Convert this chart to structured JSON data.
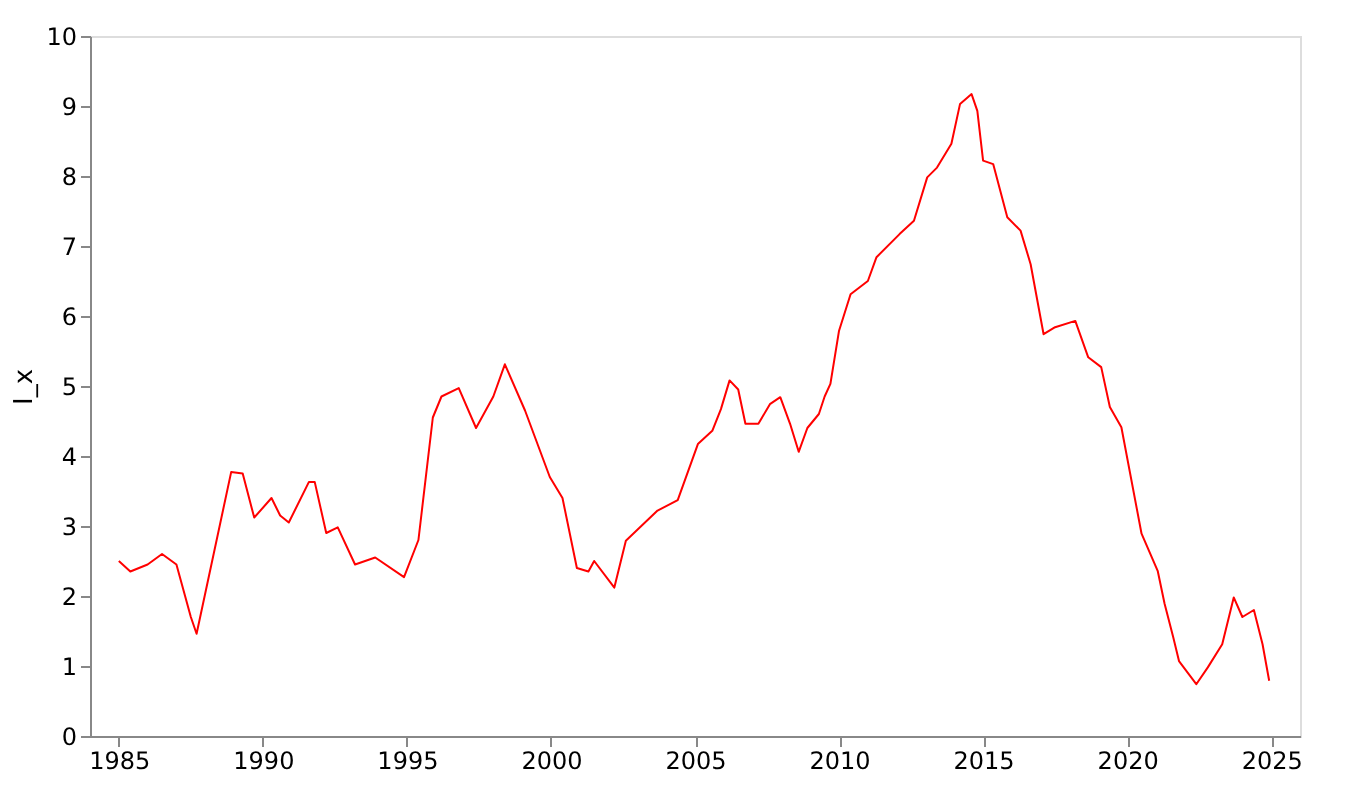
{
  "chart_data": {
    "type": "line",
    "ylabel": "I_x",
    "xlim": [
      1984,
      2026
    ],
    "ylim": [
      0,
      10
    ],
    "xticks": [
      1985,
      1990,
      1995,
      2000,
      2005,
      2010,
      2015,
      2020,
      2025
    ],
    "yticks": [
      0,
      1,
      2,
      3,
      4,
      5,
      6,
      7,
      8,
      9,
      10
    ],
    "grid": false,
    "marker": "none",
    "line_style": "solid",
    "x": [
      1985.0,
      1985.4,
      1986.0,
      1986.5,
      1987.0,
      1987.3,
      1987.5,
      1987.7,
      1988.9,
      1989.3,
      1989.7,
      1990.3,
      1990.6,
      1990.9,
      1991.6,
      1991.8,
      1992.2,
      1992.6,
      1993.2,
      1993.9,
      1994.9,
      1995.4,
      1995.9,
      1996.2,
      1996.8,
      1997.4,
      1998.0,
      1998.4,
      1999.1,
      1999.96,
      2000.4,
      2000.9,
      2001.3,
      2001.5,
      2002.2,
      2002.6,
      2003.7,
      2004.4,
      2005.1,
      2005.6,
      2005.9,
      2006.2,
      2006.5,
      2006.75,
      2007.2,
      2007.6,
      2007.96,
      2008.3,
      2008.6,
      2008.9,
      2009.3,
      2009.5,
      2009.7,
      2010.0,
      2010.4,
      2011.0,
      2011.3,
      2012.1,
      2012.6,
      2013.06,
      2013.4,
      2013.9,
      2014.2,
      2014.6,
      2014.8,
      2015.0,
      2015.35,
      2015.84,
      2016.3,
      2016.65,
      2017.1,
      2017.5,
      2018.2,
      2018.65,
      2019.1,
      2019.4,
      2019.8,
      2020.5,
      2021.06,
      2021.3,
      2021.6,
      2021.8,
      2022.4,
      2022.8,
      2023.3,
      2023.7,
      2024.0,
      2024.4,
      2024.7,
      2024.93
    ],
    "series": [
      {
        "color": "#ff0000",
        "values": [
          2.5,
          2.35,
          2.45,
          2.6,
          2.45,
          2.0,
          1.7,
          1.46,
          3.77,
          3.75,
          3.12,
          3.4,
          3.15,
          3.05,
          3.63,
          3.63,
          2.9,
          2.98,
          2.45,
          2.55,
          2.27,
          2.8,
          4.55,
          4.85,
          4.97,
          4.4,
          4.85,
          5.31,
          4.65,
          3.7,
          3.4,
          2.4,
          2.35,
          2.5,
          2.12,
          2.79,
          3.22,
          3.37,
          4.17,
          4.36,
          4.67,
          5.08,
          4.95,
          4.46,
          4.46,
          4.74,
          4.84,
          4.46,
          4.06,
          4.4,
          4.6,
          4.85,
          5.03,
          5.79,
          6.31,
          6.5,
          6.84,
          7.17,
          7.36,
          7.98,
          8.12,
          8.46,
          9.03,
          9.17,
          8.93,
          8.22,
          8.17,
          7.41,
          7.22,
          6.74,
          5.74,
          5.84,
          5.93,
          5.41,
          5.27,
          4.7,
          4.41,
          2.89,
          2.36,
          1.89,
          1.41,
          1.07,
          0.74,
          0.98,
          1.31,
          1.98,
          1.7,
          1.8,
          1.31,
          0.79
        ]
      }
    ]
  }
}
